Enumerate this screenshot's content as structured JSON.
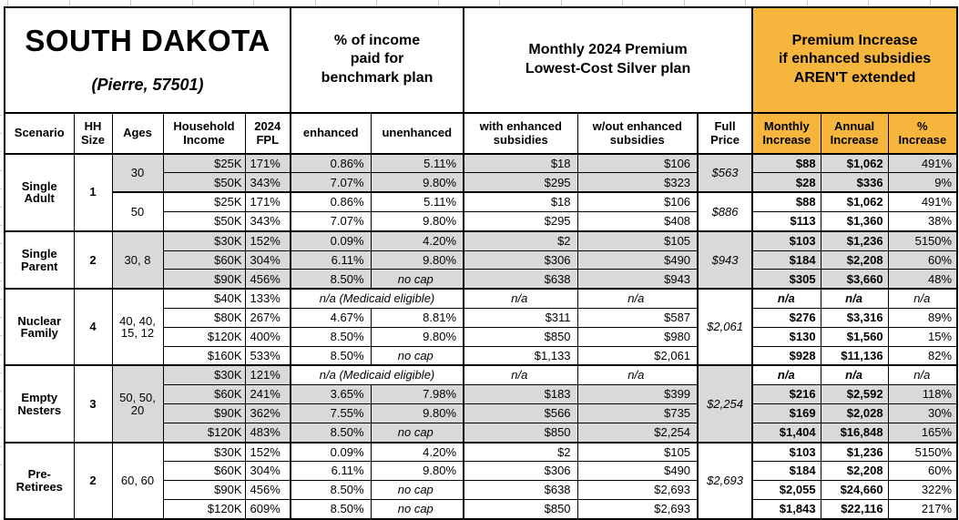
{
  "header": {
    "title": "SOUTH DAKOTA",
    "subtitle": "(Pierre, 57501)",
    "group_benchmark": "% of income\npaid for\nbenchmark plan",
    "group_premium": "Monthly 2024 Premium\nLowest-Cost Silver plan",
    "group_increase": "Premium Increase\nif enhanced subsidies\nAREN'T extended"
  },
  "columns": {
    "scenario": "Scenario",
    "hh_size": "HH\nSize",
    "ages": "Ages",
    "income": "Household\nIncome",
    "fpl": "2024\nFPL",
    "enhanced": "enhanced",
    "unenhanced": "unenhanced",
    "with_sub": "with enhanced\nsubsidies",
    "wout_sub": "w/out enhanced\nsubsidies",
    "full_price": "Full\nPrice",
    "monthly": "Monthly\nIncrease",
    "annual": "Annual\nIncrease",
    "pct": "%\nIncrease"
  },
  "colors": {
    "accent_orange": "#F6B53C",
    "row_shade_gray": "#D9D9D9",
    "border_black": "#000000"
  },
  "na": "n/a",
  "no_cap": "no cap",
  "medicaid_note": "n/a (Medicaid eligible)",
  "groups": [
    {
      "scenario": "Single\nAdult",
      "hh_size": "1",
      "blocks": [
        {
          "ages": "30",
          "shaded": true,
          "full_price": "$563",
          "rows": [
            {
              "income": "$25K",
              "fpl": "171%",
              "enhanced": "0.86%",
              "unenhanced": "5.11%",
              "with_sub": "$18",
              "wout_sub": "$106",
              "monthly": "$88",
              "annual": "$1,062",
              "pct": "491%"
            },
            {
              "income": "$50K",
              "fpl": "343%",
              "enhanced": "7.07%",
              "unenhanced": "9.80%",
              "with_sub": "$295",
              "wout_sub": "$323",
              "monthly": "$28",
              "annual": "$336",
              "pct": "9%"
            }
          ]
        },
        {
          "ages": "50",
          "shaded": false,
          "full_price": "$886",
          "rows": [
            {
              "income": "$25K",
              "fpl": "171%",
              "enhanced": "0.86%",
              "unenhanced": "5.11%",
              "with_sub": "$18",
              "wout_sub": "$106",
              "monthly": "$88",
              "annual": "$1,062",
              "pct": "491%"
            },
            {
              "income": "$50K",
              "fpl": "343%",
              "enhanced": "7.07%",
              "unenhanced": "9.80%",
              "with_sub": "$295",
              "wout_sub": "$408",
              "monthly": "$113",
              "annual": "$1,360",
              "pct": "38%"
            }
          ]
        }
      ]
    },
    {
      "scenario": "Single\nParent",
      "hh_size": "2",
      "blocks": [
        {
          "ages": "30, 8",
          "shaded": true,
          "full_price": "$943",
          "rows": [
            {
              "income": "$30K",
              "fpl": "152%",
              "enhanced": "0.09%",
              "unenhanced": "4.20%",
              "with_sub": "$2",
              "wout_sub": "$105",
              "monthly": "$103",
              "annual": "$1,236",
              "pct": "5150%"
            },
            {
              "income": "$60K",
              "fpl": "304%",
              "enhanced": "6.11%",
              "unenhanced": "9.80%",
              "with_sub": "$306",
              "wout_sub": "$490",
              "monthly": "$184",
              "annual": "$2,208",
              "pct": "60%"
            },
            {
              "income": "$90K",
              "fpl": "456%",
              "enhanced": "8.50%",
              "unenhanced": "no cap",
              "with_sub": "$638",
              "wout_sub": "$943",
              "monthly": "$305",
              "annual": "$3,660",
              "pct": "48%"
            }
          ]
        }
      ]
    },
    {
      "scenario": "Nuclear\nFamily",
      "hh_size": "4",
      "blocks": [
        {
          "ages": "40, 40,\n15, 12",
          "shaded": false,
          "full_price": "$2,061",
          "rows": [
            {
              "income": "$40K",
              "fpl": "133%",
              "medicaid": true
            },
            {
              "income": "$80K",
              "fpl": "267%",
              "enhanced": "4.67%",
              "unenhanced": "8.81%",
              "with_sub": "$311",
              "wout_sub": "$587",
              "monthly": "$276",
              "annual": "$3,316",
              "pct": "89%"
            },
            {
              "income": "$120K",
              "fpl": "400%",
              "enhanced": "8.50%",
              "unenhanced": "9.80%",
              "with_sub": "$850",
              "wout_sub": "$980",
              "monthly": "$130",
              "annual": "$1,560",
              "pct": "15%"
            },
            {
              "income": "$160K",
              "fpl": "533%",
              "enhanced": "8.50%",
              "unenhanced": "no cap",
              "with_sub": "$1,133",
              "wout_sub": "$2,061",
              "monthly": "$928",
              "annual": "$11,136",
              "pct": "82%"
            }
          ]
        }
      ]
    },
    {
      "scenario": "Empty\nNesters",
      "hh_size": "3",
      "blocks": [
        {
          "ages": "50, 50,\n20",
          "shaded": true,
          "full_price": "$2,254",
          "rows": [
            {
              "income": "$30K",
              "fpl": "121%",
              "medicaid": true
            },
            {
              "income": "$60K",
              "fpl": "241%",
              "enhanced": "3.65%",
              "unenhanced": "7.98%",
              "with_sub": "$183",
              "wout_sub": "$399",
              "monthly": "$216",
              "annual": "$2,592",
              "pct": "118%"
            },
            {
              "income": "$90K",
              "fpl": "362%",
              "enhanced": "7.55%",
              "unenhanced": "9.80%",
              "with_sub": "$566",
              "wout_sub": "$735",
              "monthly": "$169",
              "annual": "$2,028",
              "pct": "30%"
            },
            {
              "income": "$120K",
              "fpl": "483%",
              "enhanced": "8.50%",
              "unenhanced": "no cap",
              "with_sub": "$850",
              "wout_sub": "$2,254",
              "monthly": "$1,404",
              "annual": "$16,848",
              "pct": "165%"
            }
          ]
        }
      ]
    },
    {
      "scenario": "Pre-\nRetirees",
      "hh_size": "2",
      "blocks": [
        {
          "ages": "60, 60",
          "shaded": false,
          "full_price": "$2,693",
          "rows": [
            {
              "income": "$30K",
              "fpl": "152%",
              "enhanced": "0.09%",
              "unenhanced": "4.20%",
              "with_sub": "$2",
              "wout_sub": "$105",
              "monthly": "$103",
              "annual": "$1,236",
              "pct": "5150%"
            },
            {
              "income": "$60K",
              "fpl": "304%",
              "enhanced": "6.11%",
              "unenhanced": "9.80%",
              "with_sub": "$306",
              "wout_sub": "$490",
              "monthly": "$184",
              "annual": "$2,208",
              "pct": "60%"
            },
            {
              "income": "$90K",
              "fpl": "456%",
              "enhanced": "8.50%",
              "unenhanced": "no cap",
              "with_sub": "$638",
              "wout_sub": "$2,693",
              "monthly": "$2,055",
              "annual": "$24,660",
              "pct": "322%"
            },
            {
              "income": "$120K",
              "fpl": "609%",
              "enhanced": "8.50%",
              "unenhanced": "no cap",
              "with_sub": "$850",
              "wout_sub": "$2,693",
              "monthly": "$1,843",
              "annual": "$22,116",
              "pct": "217%"
            }
          ]
        }
      ]
    }
  ]
}
